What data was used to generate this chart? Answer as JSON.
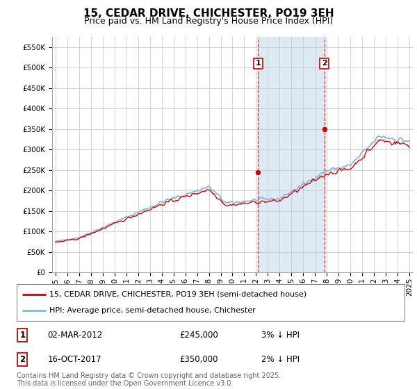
{
  "title": "15, CEDAR DRIVE, CHICHESTER, PO19 3EH",
  "subtitle": "Price paid vs. HM Land Registry's House Price Index (HPI)",
  "ytick_values": [
    0,
    50000,
    100000,
    150000,
    200000,
    250000,
    300000,
    350000,
    400000,
    450000,
    500000,
    550000
  ],
  "ylim": [
    0,
    575000
  ],
  "xmin_year": 1995,
  "xmax_year": 2025,
  "xticks": [
    1995,
    1996,
    1997,
    1998,
    1999,
    2000,
    2001,
    2002,
    2003,
    2004,
    2005,
    2006,
    2007,
    2008,
    2009,
    2010,
    2011,
    2012,
    2013,
    2014,
    2015,
    2016,
    2017,
    2018,
    2019,
    2020,
    2021,
    2022,
    2023,
    2024,
    2025
  ],
  "purchase1_year": 2012.17,
  "purchase1_price": 245000,
  "purchase2_year": 2017.79,
  "purchase2_price": 350000,
  "legend_line1": "15, CEDAR DRIVE, CHICHESTER, PO19 3EH (semi-detached house)",
  "legend_line2": "HPI: Average price, semi-detached house, Chichester",
  "footer": "Contains HM Land Registry data © Crown copyright and database right 2025.\nThis data is licensed under the Open Government Licence v3.0.",
  "line_color_red": "#cc0000",
  "line_color_blue": "#85b8d9",
  "vline_color": "#cc0000",
  "shaded_color": "#dceaf5",
  "background_color": "#ffffff",
  "grid_color": "#cccccc",
  "title_fontsize": 11,
  "subtitle_fontsize": 9,
  "tick_fontsize": 7.5,
  "legend_fontsize": 8,
  "footer_fontsize": 7
}
